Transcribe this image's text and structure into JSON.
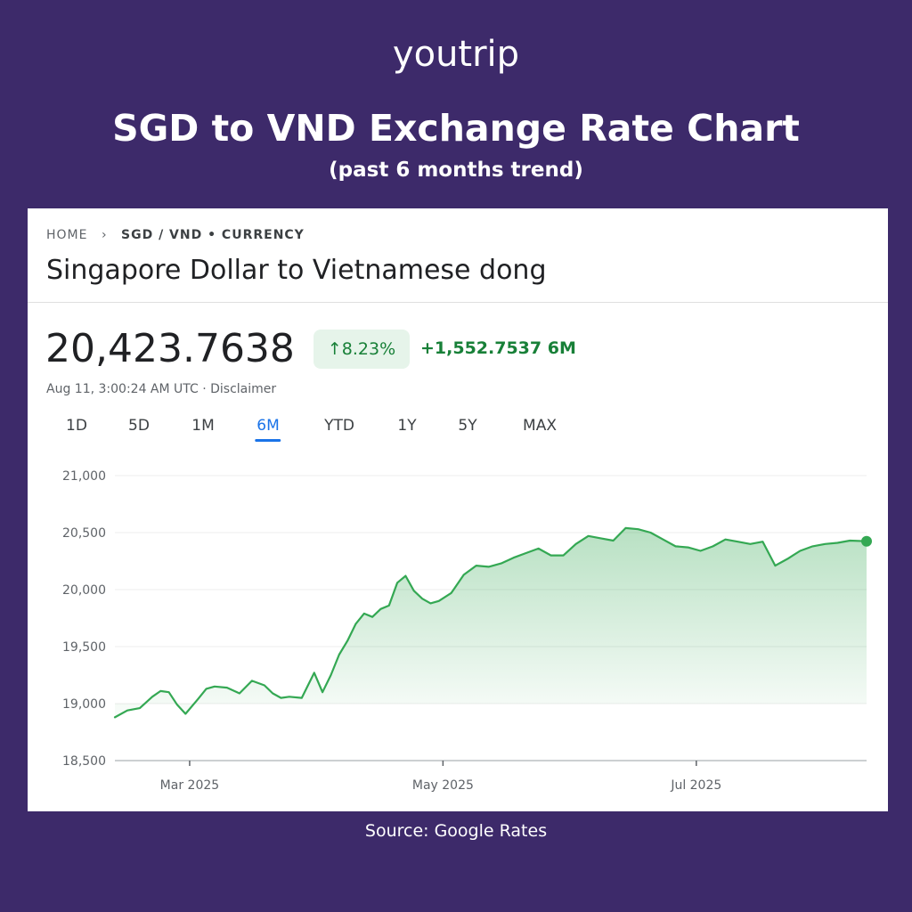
{
  "brand": {
    "logo_text": "youtrip"
  },
  "headline": "SGD to VND Exchange Rate Chart",
  "subheadline": "(past 6 months trend)",
  "breadcrumb": {
    "home": "HOME",
    "current": "SGD / VND • CURRENCY"
  },
  "pair_title": "Singapore Dollar to Vietnamese dong",
  "quote": {
    "price": "20,423.7638",
    "change_pct": "8.23%",
    "change_abs": "+1,552.7537 6M",
    "timestamp": "Aug 11, 3:00:24 AM UTC · Disclaimer"
  },
  "range_tabs": [
    {
      "label": "1D",
      "active": false
    },
    {
      "label": "5D",
      "active": false
    },
    {
      "label": "1M",
      "active": false
    },
    {
      "label": "6M",
      "active": true
    },
    {
      "label": "YTD",
      "active": false
    },
    {
      "label": "1Y",
      "active": false
    },
    {
      "label": "5Y",
      "active": false
    },
    {
      "label": "MAX",
      "active": false
    }
  ],
  "source": "Source: Google Rates",
  "colors": {
    "background": "#3d2a6a",
    "line": "#34a853",
    "accent": "#1a73e8",
    "up": "#188038"
  },
  "chart_data": {
    "type": "area",
    "title": "",
    "xlabel": "",
    "ylabel": "",
    "ylim": [
      18500,
      21000
    ],
    "yticks": [
      18500,
      19000,
      19500,
      20000,
      20500,
      21000
    ],
    "ytick_labels": [
      "18,500",
      "19,000",
      "19,500",
      "20,000",
      "20,500",
      "21,000"
    ],
    "xlim": [
      "2025-02-11",
      "2025-08-11"
    ],
    "xtick_dates": [
      "2025-03-01",
      "2025-05-01",
      "2025-07-01"
    ],
    "xtick_labels": [
      "Mar 2025",
      "May 2025",
      "Jul 2025"
    ],
    "grid": "horizontal",
    "series": [
      {
        "x": [
          "2025-02-11",
          "2025-02-14",
          "2025-02-17",
          "2025-02-20",
          "2025-02-22",
          "2025-02-24",
          "2025-02-26",
          "2025-02-28",
          "2025-03-03",
          "2025-03-05",
          "2025-03-07",
          "2025-03-10",
          "2025-03-13",
          "2025-03-16",
          "2025-03-19",
          "2025-03-21",
          "2025-03-23",
          "2025-03-25",
          "2025-03-28",
          "2025-03-31",
          "2025-04-02",
          "2025-04-04",
          "2025-04-06",
          "2025-04-08",
          "2025-04-10",
          "2025-04-12",
          "2025-04-14",
          "2025-04-16",
          "2025-04-18",
          "2025-04-20",
          "2025-04-22",
          "2025-04-24",
          "2025-04-26",
          "2025-04-28",
          "2025-04-30",
          "2025-05-03",
          "2025-05-06",
          "2025-05-09",
          "2025-05-12",
          "2025-05-15",
          "2025-05-18",
          "2025-05-21",
          "2025-05-24",
          "2025-05-27",
          "2025-05-30",
          "2025-06-02",
          "2025-06-05",
          "2025-06-08",
          "2025-06-11",
          "2025-06-14",
          "2025-06-17",
          "2025-06-20",
          "2025-06-23",
          "2025-06-26",
          "2025-06-29",
          "2025-07-02",
          "2025-07-05",
          "2025-07-08",
          "2025-07-11",
          "2025-07-14",
          "2025-07-17",
          "2025-07-20",
          "2025-07-23",
          "2025-07-26",
          "2025-07-29",
          "2025-08-01",
          "2025-08-04",
          "2025-08-07",
          "2025-08-11"
        ],
        "y": [
          18880,
          18940,
          18960,
          19060,
          19110,
          19100,
          18990,
          18910,
          19040,
          19130,
          19150,
          19140,
          19090,
          19200,
          19160,
          19090,
          19050,
          19060,
          19050,
          19270,
          19100,
          19250,
          19430,
          19550,
          19700,
          19790,
          19760,
          19830,
          19860,
          20060,
          20120,
          19990,
          19920,
          19880,
          19900,
          19970,
          20130,
          20210,
          20200,
          20230,
          20280,
          20320,
          20360,
          20300,
          20300,
          20400,
          20470,
          20450,
          20430,
          20540,
          20530,
          20500,
          20440,
          20380,
          20370,
          20340,
          20380,
          20440,
          20420,
          20400,
          20420,
          20210,
          20270,
          20340,
          20380,
          20400,
          20410,
          20430,
          20424
        ]
      }
    ]
  }
}
